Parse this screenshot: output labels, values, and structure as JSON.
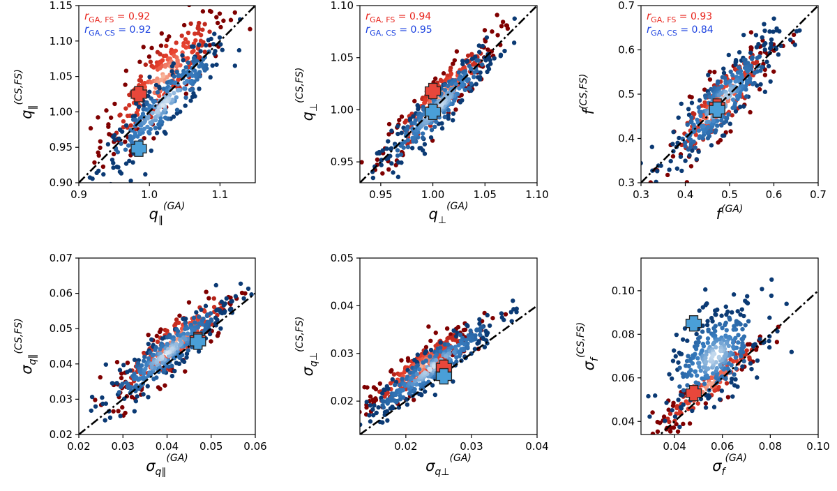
{
  "colors": {
    "fs_dark": "#7f0000",
    "fs_mid": "#e8412e",
    "fs_light": "#f8b89e",
    "cs_dark": "#0b3a74",
    "cs_mid": "#3a7fc2",
    "cs_light": "#dce9f5",
    "identity_line": "#000000",
    "marker_fs": "#e8473b",
    "marker_cs": "#4a9fd8"
  },
  "chart_data": [
    {
      "id": "q-par",
      "type": "scatter",
      "title": "",
      "xlabel": "q∥(GA)",
      "ylabel": "q∥(CS,FS)",
      "xlim": [
        0.9,
        1.15
      ],
      "ylim": [
        0.9,
        1.15
      ],
      "xticks": [
        0.9,
        1.0,
        1.1
      ],
      "xtick_labels": [
        "0.9",
        "1.0",
        "1.1"
      ],
      "yticks": [
        0.9,
        0.95,
        1.0,
        1.05,
        1.1,
        1.15
      ],
      "ytick_labels": [
        "0.90",
        "0.95",
        "1.00",
        "1.05",
        "1.10",
        "1.15"
      ],
      "identity_line": {
        "from": [
          0.9,
          0.9
        ],
        "to": [
          1.15,
          1.15
        ]
      },
      "annotations": [
        {
          "label": "rGA, FS = 0.92",
          "color": "#e8241c",
          "position": "top-left"
        },
        {
          "label": "rGA, CS = 0.92",
          "color": "#1d43e0",
          "position": "top-left"
        }
      ],
      "series": [
        {
          "name": "FS",
          "center": [
            1.02,
            1.05
          ],
          "spread": [
            0.045,
            0.028
          ],
          "slope": 1.0,
          "count": 260
        },
        {
          "name": "CS",
          "center": [
            1.02,
            1.01
          ],
          "spread": [
            0.045,
            0.018
          ],
          "slope": 1.0,
          "count": 300
        }
      ],
      "markers": [
        {
          "name": "FS reference",
          "x": 0.985,
          "y": 1.025,
          "color": "#e8473b"
        },
        {
          "name": "CS reference",
          "x": 0.985,
          "y": 0.948,
          "color": "#4a9fd8"
        }
      ]
    },
    {
      "id": "q-perp",
      "type": "scatter",
      "title": "",
      "xlabel": "q⊥(GA)",
      "ylabel": "q⊥(CS,FS)",
      "xlim": [
        0.93,
        1.1
      ],
      "ylim": [
        0.93,
        1.1
      ],
      "xticks": [
        0.95,
        1.0,
        1.05,
        1.1
      ],
      "xtick_labels": [
        "0.95",
        "1.00",
        "1.05",
        "1.10"
      ],
      "yticks": [
        0.95,
        1.0,
        1.05,
        1.1
      ],
      "ytick_labels": [
        "0.95",
        "1.00",
        "1.05",
        "1.10"
      ],
      "identity_line": {
        "from": [
          0.93,
          0.93
        ],
        "to": [
          1.1,
          1.1
        ]
      },
      "annotations": [
        {
          "label": "rGA, FS = 0.94",
          "color": "#e8241c",
          "position": "top-left"
        },
        {
          "label": "rGA, CS = 0.95",
          "color": "#1d43e0",
          "position": "top-left"
        }
      ],
      "series": [
        {
          "name": "FS",
          "center": [
            1.005,
            1.01
          ],
          "spread": [
            0.028,
            0.012
          ],
          "slope": 1.0,
          "count": 240
        },
        {
          "name": "CS",
          "center": [
            1.005,
            1.002
          ],
          "spread": [
            0.028,
            0.01
          ],
          "slope": 1.0,
          "count": 300
        }
      ],
      "markers": [
        {
          "name": "FS reference",
          "x": 1.0,
          "y": 1.018,
          "color": "#e8473b"
        },
        {
          "name": "CS reference",
          "x": 1.0,
          "y": 0.998,
          "color": "#4a9fd8"
        }
      ]
    },
    {
      "id": "f",
      "type": "scatter",
      "title": "",
      "xlabel": "f(GA)",
      "ylabel": "f(CS,FS)",
      "xlim": [
        0.3,
        0.7
      ],
      "ylim": [
        0.3,
        0.7
      ],
      "xticks": [
        0.3,
        0.4,
        0.5,
        0.6,
        0.7
      ],
      "xtick_labels": [
        "0.3",
        "0.4",
        "0.5",
        "0.6",
        "0.7"
      ],
      "yticks": [
        0.3,
        0.4,
        0.5,
        0.6,
        0.7
      ],
      "ytick_labels": [
        "0.3",
        "0.4",
        "0.5",
        "0.6",
        "0.7"
      ],
      "identity_line": {
        "from": [
          0.3,
          0.3
        ],
        "to": [
          0.7,
          0.7
        ]
      },
      "annotations": [
        {
          "label": "rGA, FS = 0.93",
          "color": "#e8241c",
          "position": "top-left"
        },
        {
          "label": "rGA, CS = 0.84",
          "color": "#1d43e0",
          "position": "top-left"
        }
      ],
      "series": [
        {
          "name": "FS",
          "center": [
            0.48,
            0.48
          ],
          "spread": [
            0.06,
            0.035
          ],
          "slope": 1.0,
          "count": 180
        },
        {
          "name": "CS",
          "center": [
            0.48,
            0.48
          ],
          "spread": [
            0.06,
            0.035
          ],
          "slope": 1.0,
          "count": 320
        }
      ],
      "markers": [
        {
          "name": "FS reference",
          "x": 0.472,
          "y": 0.472,
          "color": "#e8473b"
        },
        {
          "name": "CS reference",
          "x": 0.472,
          "y": 0.465,
          "color": "#4a9fd8"
        }
      ]
    },
    {
      "id": "sigma-q-par",
      "type": "scatter",
      "title": "",
      "xlabel": "σq∥(GA)",
      "ylabel": "σq∥(CS,FS)",
      "xlim": [
        0.02,
        0.06
      ],
      "ylim": [
        0.02,
        0.07
      ],
      "xticks": [
        0.02,
        0.03,
        0.04,
        0.05,
        0.06
      ],
      "xtick_labels": [
        "0.02",
        "0.03",
        "0.04",
        "0.05",
        "0.06"
      ],
      "yticks": [
        0.02,
        0.03,
        0.04,
        0.05,
        0.06,
        0.07
      ],
      "ytick_labels": [
        "0.02",
        "0.03",
        "0.04",
        "0.05",
        "0.06",
        "0.07"
      ],
      "identity_line": {
        "from": [
          0.02,
          0.02
        ],
        "to": [
          0.06,
          0.06
        ]
      },
      "annotations": [],
      "series": [
        {
          "name": "FS",
          "center": [
            0.042,
            0.046
          ],
          "spread": [
            0.007,
            0.004
          ],
          "slope": 1.0,
          "count": 230
        },
        {
          "name": "CS",
          "center": [
            0.04,
            0.043
          ],
          "spread": [
            0.007,
            0.003
          ],
          "slope": 1.0,
          "count": 300
        }
      ],
      "markers": [
        {
          "name": "FS reference",
          "x": 0.047,
          "y": 0.0468,
          "color": "#e8473b"
        },
        {
          "name": "CS reference",
          "x": 0.047,
          "y": 0.0463,
          "color": "#4a9fd8"
        }
      ]
    },
    {
      "id": "sigma-q-perp",
      "type": "scatter",
      "title": "",
      "xlabel": "σq⊥(GA)",
      "ylabel": "σq⊥(CS,FS)",
      "xlim": [
        0.013,
        0.04
      ],
      "ylim": [
        0.013,
        0.05
      ],
      "xticks": [
        0.02,
        0.03,
        0.04
      ],
      "xtick_labels": [
        "0.02",
        "0.03",
        "0.04"
      ],
      "yticks": [
        0.02,
        0.03,
        0.04,
        0.05
      ],
      "ytick_labels": [
        "0.02",
        "0.03",
        "0.04",
        "0.05"
      ],
      "identity_line": {
        "from": [
          0.013,
          0.013
        ],
        "to": [
          0.04,
          0.04
        ]
      },
      "annotations": [],
      "series": [
        {
          "name": "FS",
          "center": [
            0.022,
            0.027
          ],
          "spread": [
            0.004,
            0.002
          ],
          "slope": 1.0,
          "count": 230
        },
        {
          "name": "CS",
          "center": [
            0.024,
            0.027
          ],
          "spread": [
            0.005,
            0.002
          ],
          "slope": 1.0,
          "count": 300
        }
      ],
      "markers": [
        {
          "name": "FS reference",
          "x": 0.0258,
          "y": 0.027,
          "color": "#e8473b"
        },
        {
          "name": "CS reference",
          "x": 0.0258,
          "y": 0.0252,
          "color": "#4a9fd8"
        }
      ]
    },
    {
      "id": "sigma-f",
      "type": "scatter",
      "title": "",
      "xlabel": "σf(GA)",
      "ylabel": "σf(CS,FS)",
      "xlim": [
        0.026,
        0.1
      ],
      "ylim": [
        0.034,
        0.115
      ],
      "xticks": [
        0.04,
        0.06,
        0.08,
        0.1
      ],
      "xtick_labels": [
        "0.04",
        "0.06",
        "0.08",
        "0.10"
      ],
      "yticks": [
        0.04,
        0.06,
        0.08,
        0.1
      ],
      "ytick_labels": [
        "0.04",
        "0.06",
        "0.08",
        "0.10"
      ],
      "identity_line": {
        "from": [
          0.026,
          0.026
        ],
        "to": [
          0.1,
          0.1
        ]
      },
      "annotations": [],
      "series": [
        {
          "name": "FS",
          "center": [
            0.055,
            0.057
          ],
          "spread": [
            0.012,
            0.004
          ],
          "slope": 0.9,
          "count": 150
        },
        {
          "name": "CS",
          "center": [
            0.057,
            0.07
          ],
          "spread": [
            0.01,
            0.01
          ],
          "slope": 0.6,
          "count": 320
        }
      ],
      "markers": [
        {
          "name": "FS reference",
          "x": 0.048,
          "y": 0.053,
          "color": "#e8473b"
        },
        {
          "name": "CS reference",
          "x": 0.048,
          "y": 0.085,
          "color": "#4a9fd8"
        }
      ]
    }
  ]
}
